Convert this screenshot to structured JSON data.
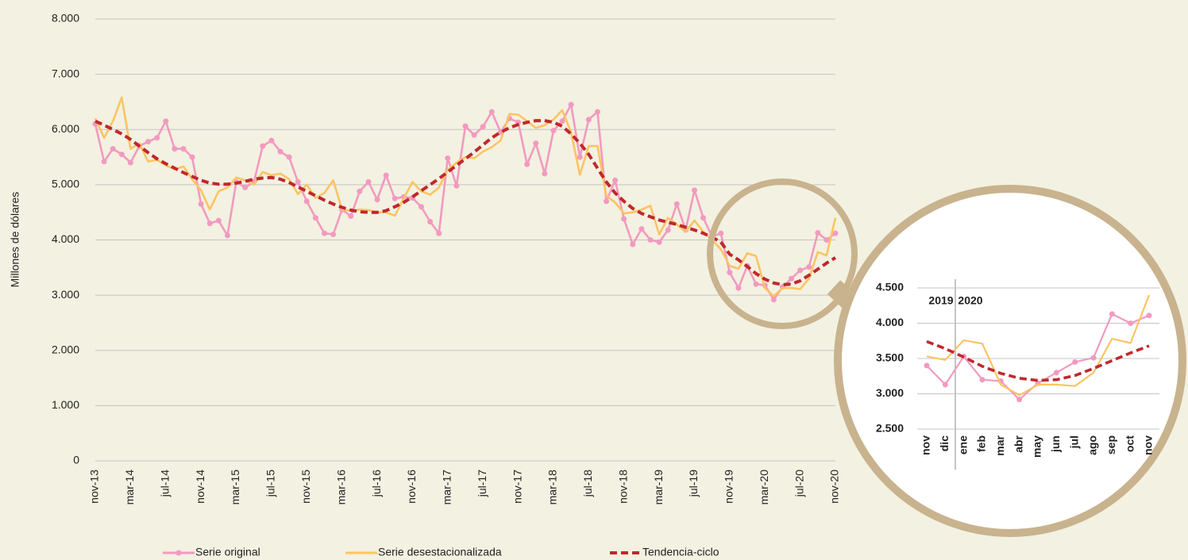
{
  "chart_data": [
    {
      "type": "line",
      "y_axis_label": "Millones de dólares",
      "categories": [
        "nov-13",
        null,
        null,
        null,
        "mar-14",
        null,
        null,
        null,
        "jul-14",
        null,
        null,
        null,
        "nov-14",
        null,
        null,
        null,
        "mar-15",
        null,
        null,
        null,
        "jul-15",
        null,
        null,
        null,
        "nov-15",
        null,
        null,
        null,
        "mar-16",
        null,
        null,
        null,
        "jul-16",
        null,
        null,
        null,
        "nov-16",
        null,
        null,
        null,
        "mar-17",
        null,
        null,
        null,
        "jul-17",
        null,
        null,
        null,
        "nov-17",
        null,
        null,
        null,
        "mar-18",
        null,
        null,
        null,
        "jul-18",
        null,
        null,
        null,
        "nov-18",
        null,
        null,
        null,
        "mar-19",
        null,
        null,
        null,
        "jul-19",
        null,
        null,
        null,
        "nov-19",
        null,
        null,
        null,
        "mar-20",
        null,
        null,
        null,
        "jul-20",
        null,
        null,
        null,
        "nov-20"
      ],
      "series": [
        {
          "name": "Serie original",
          "color": "#f29ac0",
          "marker": "circle",
          "values": [
            6100,
            5420,
            5650,
            5550,
            5400,
            5700,
            5780,
            5850,
            6150,
            5650,
            5650,
            5500,
            4650,
            4300,
            4350,
            4080,
            5050,
            4950,
            5050,
            5700,
            5800,
            5600,
            5500,
            5050,
            4700,
            4400,
            4120,
            4100,
            4550,
            4430,
            4880,
            5050,
            4730,
            5170,
            4750,
            4780,
            4760,
            4600,
            4330,
            4120,
            5480,
            4980,
            6060,
            5900,
            6050,
            6320,
            5950,
            6200,
            6130,
            5370,
            5750,
            5200,
            5980,
            6150,
            6450,
            5500,
            6180,
            6320,
            4700,
            5080,
            4380,
            3920,
            4200,
            4000,
            3960,
            4180,
            4650,
            4180,
            4900,
            4400,
            4060,
            4120,
            3410,
            3130,
            3530,
            3200,
            3180,
            2920,
            3150,
            3300,
            3450,
            3510,
            4130,
            4000,
            4120
          ]
        },
        {
          "name": "Serie desestacionalizada",
          "color": "#fcc463",
          "values": [
            6200,
            5850,
            6150,
            6580,
            5650,
            5750,
            5420,
            5450,
            5350,
            5280,
            5330,
            5100,
            4900,
            4550,
            4880,
            4950,
            5130,
            5080,
            5000,
            5230,
            5170,
            5200,
            5100,
            4830,
            5000,
            4760,
            4850,
            5080,
            4550,
            4530,
            4550,
            4540,
            4500,
            4500,
            4440,
            4750,
            5050,
            4880,
            4820,
            4950,
            5270,
            5400,
            5500,
            5480,
            5600,
            5680,
            5800,
            6280,
            6270,
            6150,
            6030,
            6080,
            6180,
            6350,
            5950,
            5180,
            5700,
            5700,
            4800,
            4680,
            4480,
            4500,
            4550,
            4620,
            4100,
            4400,
            4280,
            4150,
            4350,
            4150,
            4000,
            3830,
            3530,
            3480,
            3760,
            3710,
            3130,
            2980,
            3130,
            3130,
            3110,
            3300,
            3780,
            3720,
            4400
          ]
        },
        {
          "name": "Tendencia-ciclo",
          "color": "#c0282d",
          "dash": true,
          "values": [
            6150,
            6080,
            6000,
            5920,
            5820,
            5700,
            5580,
            5470,
            5380,
            5300,
            5220,
            5150,
            5080,
            5030,
            5010,
            5010,
            5030,
            5060,
            5100,
            5120,
            5130,
            5100,
            5040,
            4960,
            4880,
            4800,
            4720,
            4650,
            4590,
            4540,
            4510,
            4500,
            4500,
            4530,
            4600,
            4680,
            4780,
            4890,
            5000,
            5110,
            5230,
            5350,
            5470,
            5590,
            5720,
            5850,
            5950,
            6030,
            6090,
            6130,
            6160,
            6160,
            6130,
            6060,
            5920,
            5750,
            5550,
            5300,
            5050,
            4850,
            4700,
            4570,
            4480,
            4420,
            4360,
            4320,
            4280,
            4230,
            4180,
            4120,
            4050,
            3960,
            3740,
            3640,
            3520,
            3390,
            3290,
            3220,
            3190,
            3200,
            3260,
            3360,
            3470,
            3580,
            3680
          ]
        }
      ],
      "ylim": [
        0,
        8000
      ],
      "yticks": [
        0,
        {
          "value": 1000,
          "label": "1.000"
        },
        {
          "value": 2000,
          "label": "2.000"
        },
        {
          "value": 3000,
          "label": "3.000"
        },
        {
          "value": 4000,
          "label": "4.000"
        },
        {
          "value": 5000,
          "label": "5.000"
        },
        {
          "value": 6000,
          "label": "6.000"
        },
        {
          "value": 7000,
          "label": "7.000"
        },
        {
          "value": 8000,
          "label": "8.000"
        }
      ],
      "grid": true,
      "legend": "bottom"
    },
    {
      "type": "line",
      "annotations": [
        "2019",
        "2020"
      ],
      "categories": [
        "nov",
        "dic",
        "ene",
        "feb",
        "mar",
        "abr",
        "may",
        "jun",
        "jul",
        "ago",
        "sep",
        "oct",
        "nov"
      ],
      "series": [
        {
          "color": "#f29ac0",
          "marker": "circle",
          "values": [
            3400,
            3130,
            3530,
            3200,
            3180,
            2920,
            3150,
            3300,
            3450,
            3510,
            4130,
            4000,
            4110
          ]
        },
        {
          "color": "#fcc463",
          "values": [
            3530,
            3480,
            3760,
            3710,
            3130,
            2980,
            3130,
            3130,
            3110,
            3300,
            3780,
            3720,
            4400
          ]
        },
        {
          "color": "#c0282d",
          "dash": true,
          "values": [
            3740,
            3640,
            3520,
            3390,
            3290,
            3220,
            3190,
            3200,
            3260,
            3360,
            3470,
            3580,
            3680
          ]
        }
      ],
      "ylim": [
        2500,
        4500
      ],
      "yticks": [
        {
          "value": 2500,
          "label": "2.500"
        },
        {
          "value": 3000,
          "label": "3.000"
        },
        {
          "value": 3500,
          "label": "3.500"
        },
        {
          "value": 4000,
          "label": "4.000"
        },
        {
          "value": 4500,
          "label": "4.500"
        }
      ],
      "grid": true
    }
  ]
}
